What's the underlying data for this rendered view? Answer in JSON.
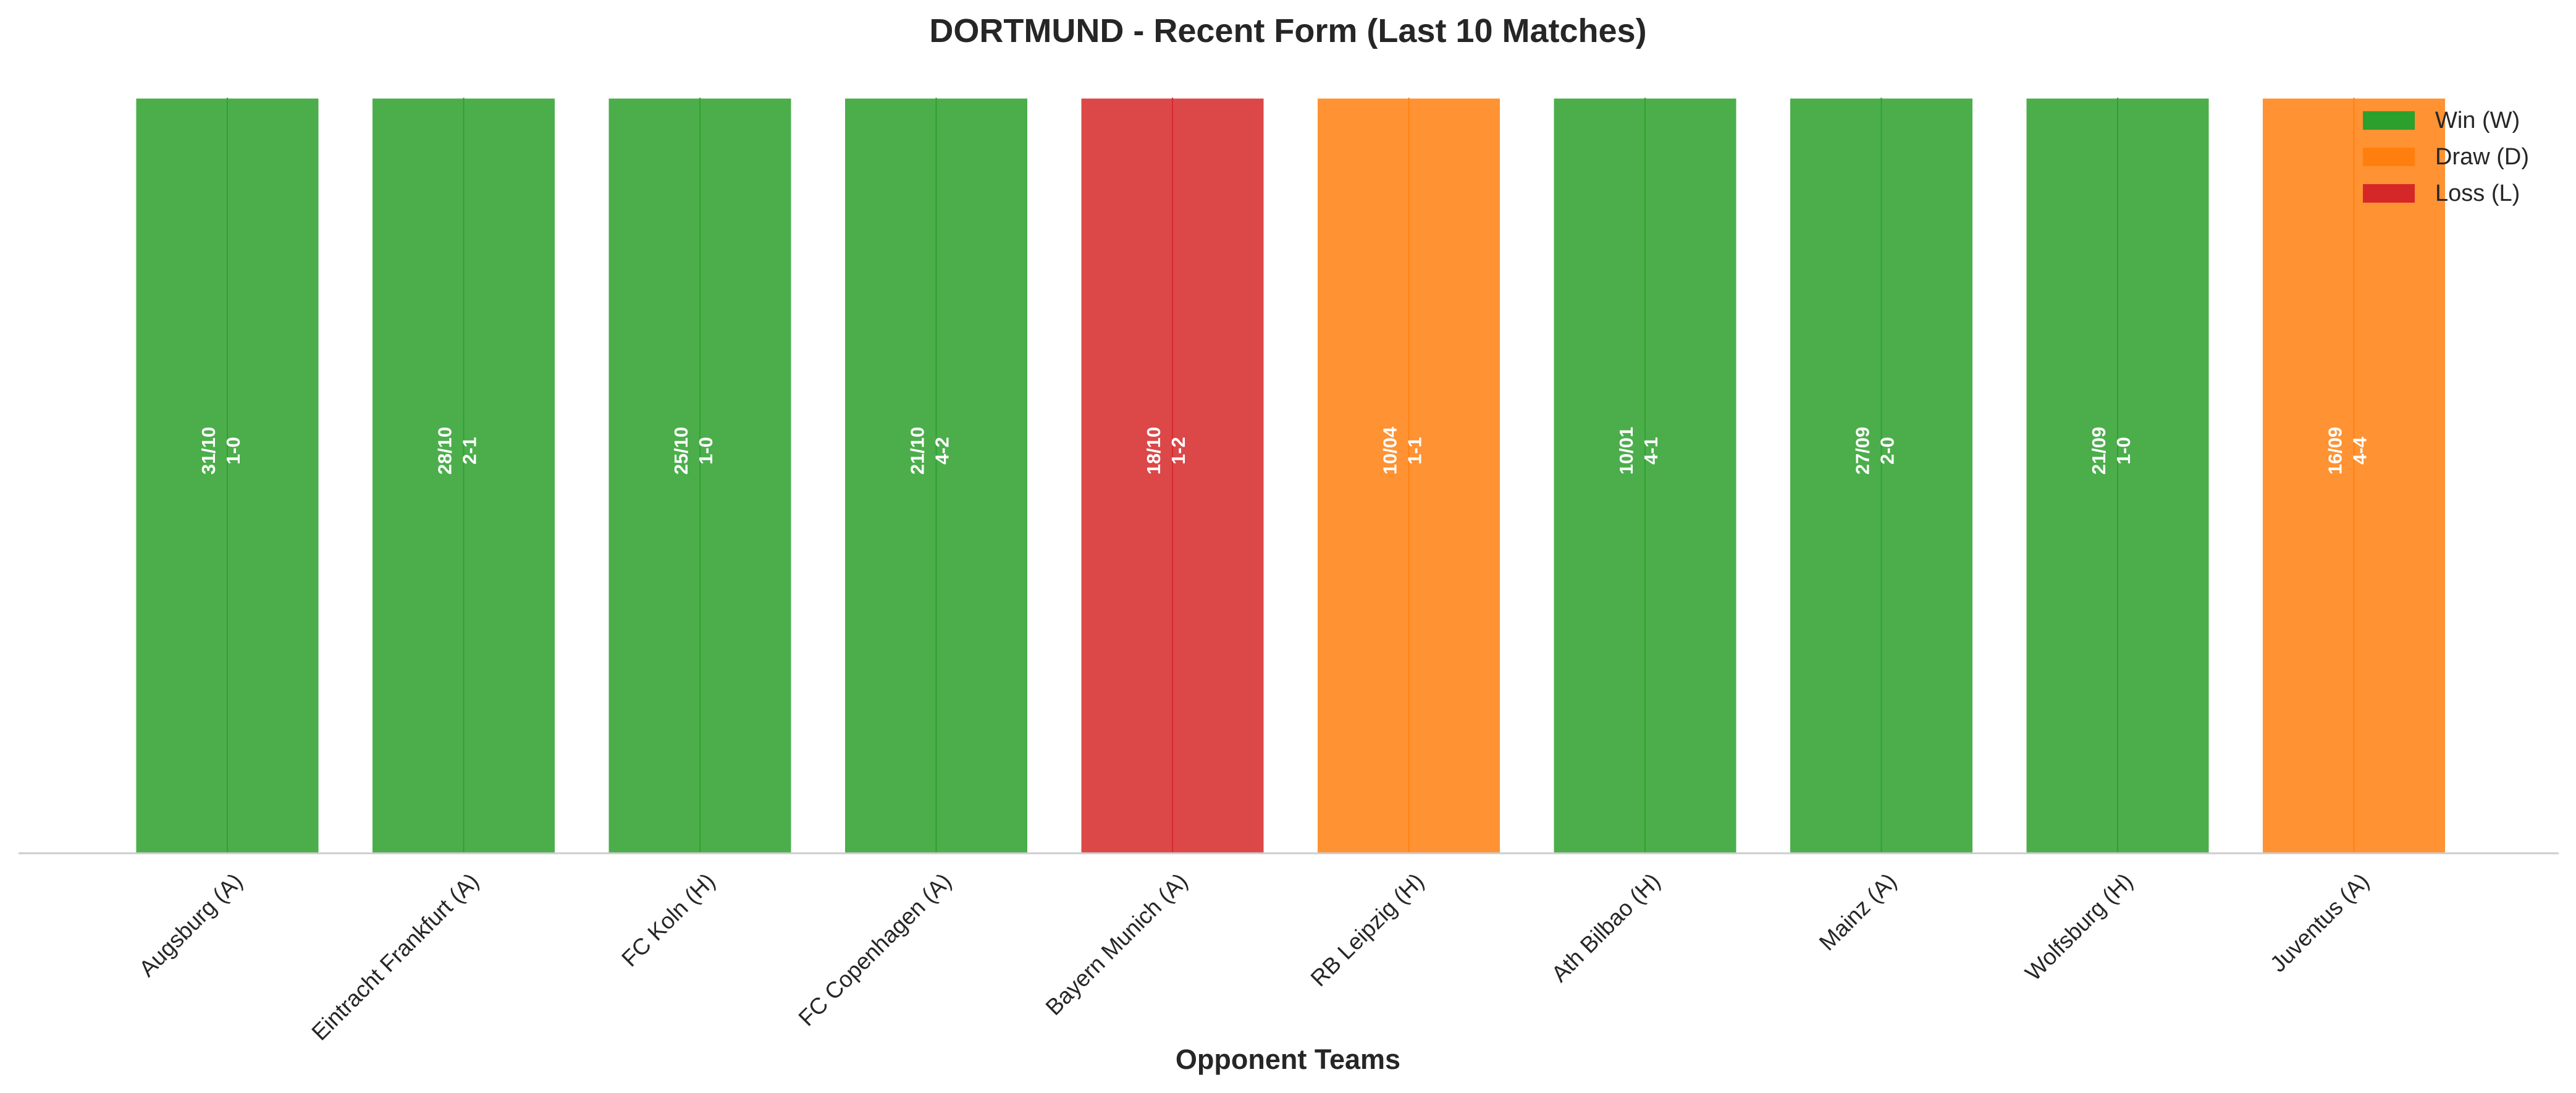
{
  "chart_data": {
    "type": "bar",
    "title": "DORTMUND - Recent Form (Last 10 Matches)",
    "xlabel": "Opponent Teams",
    "ylabel": "",
    "ylim": [
      0,
      1
    ],
    "grid": false,
    "legend_position": "top-right",
    "categories": [
      "Augsburg (A)",
      "Eintracht Frankfurt (A)",
      "FC Koln (H)",
      "FC Copenhagen (A)",
      "Bayern Munich (A)",
      "RB Leipzig (H)",
      "Ath Bilbao (H)",
      "Mainz (A)",
      "Wolfsburg (H)",
      "Juventus (A)"
    ],
    "values": [
      1,
      1,
      1,
      1,
      1,
      1,
      1,
      1,
      1,
      1
    ],
    "results": [
      "W",
      "W",
      "W",
      "W",
      "L",
      "D",
      "W",
      "W",
      "W",
      "D"
    ],
    "dates": [
      "31/10",
      "28/10",
      "25/10",
      "21/10",
      "18/10",
      "10/04",
      "10/01",
      "27/09",
      "21/09",
      "16/09"
    ],
    "scores": [
      "1-0",
      "2-1",
      "1-0",
      "4-2",
      "1-2",
      "1-1",
      "4-1",
      "2-0",
      "1-0",
      "4-4"
    ],
    "legend": [
      {
        "key": "W",
        "label": "Win (W)",
        "color": "#2ca02c"
      },
      {
        "key": "D",
        "label": "Draw (D)",
        "color": "#ff7f0e"
      },
      {
        "key": "L",
        "label": "Loss (L)",
        "color": "#d62728"
      }
    ]
  }
}
